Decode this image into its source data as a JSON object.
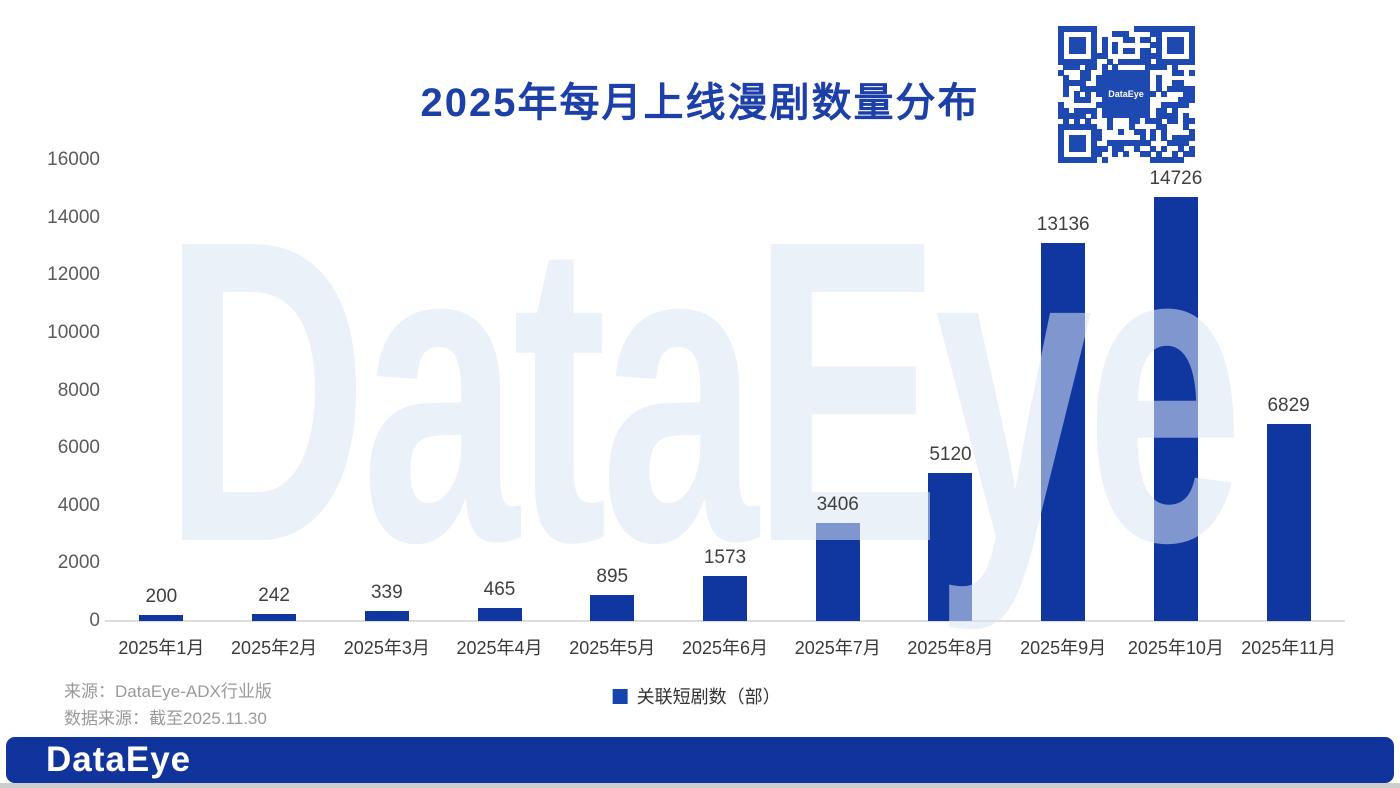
{
  "title": "2025年每月上线漫剧数量分布",
  "watermark_text": "DataEye",
  "qr": {
    "center_label": "DataEye"
  },
  "chart_data": {
    "type": "bar",
    "title": "2025年每月上线漫剧数量分布",
    "categories": [
      "2025年1月",
      "2025年2月",
      "2025年3月",
      "2025年4月",
      "2025年5月",
      "2025年6月",
      "2025年7月",
      "2025年8月",
      "2025年9月",
      "2025年10月",
      "2025年11月"
    ],
    "values": [
      200,
      242,
      339,
      465,
      895,
      1573,
      3406,
      5120,
      13136,
      14726,
      6829
    ],
    "series_name": "关联短剧数（部）",
    "xlabel": "",
    "ylabel": "",
    "ylim": [
      0,
      16000
    ],
    "yticks": [
      0,
      2000,
      4000,
      6000,
      8000,
      10000,
      12000,
      14000,
      16000
    ],
    "grid": false,
    "data_labels": true,
    "legend_position": "bottom-center",
    "bar_color": "#10379f"
  },
  "legend": {
    "label": "关联短剧数（部）",
    "marker_color": "#1644ad"
  },
  "source": {
    "line1": "来源：DataEye-ADX行业版",
    "line2": "数据来源：截至2025.11.30"
  },
  "footer": {
    "logo": "DataEye",
    "bg_color": "#10349c"
  },
  "colors": {
    "title": "#1c3fa8",
    "bar": "#10379f",
    "axis_tick": "#5b5b5b",
    "data_label": "#3f3f3f",
    "source_text": "#9a9a9a",
    "watermark": "#dbe6f4",
    "footer_bg": "#10349c",
    "qr_blue": "#1d49b0"
  }
}
